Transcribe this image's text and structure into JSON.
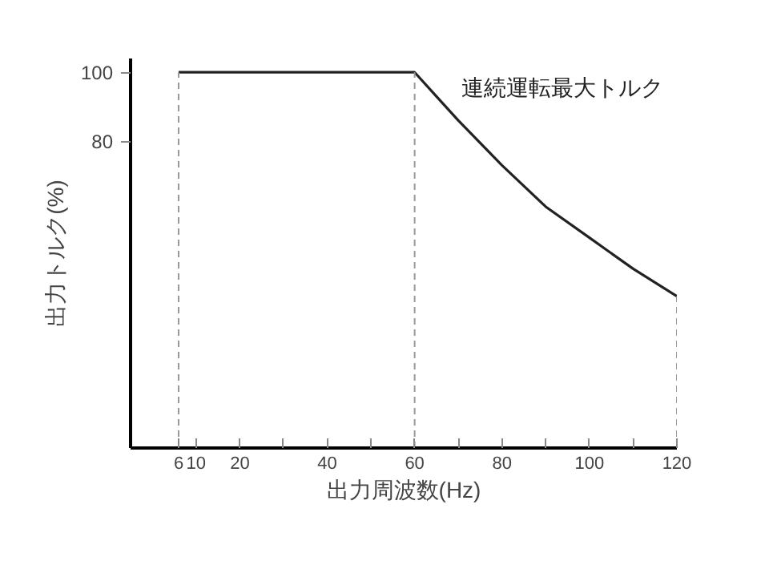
{
  "chart_data": {
    "type": "line",
    "xlabel": "出力周波数(Hz)",
    "ylabel": "出力トルク(%)",
    "x": [
      6,
      60,
      65,
      70,
      80,
      90,
      100,
      110,
      120
    ],
    "series": [
      {
        "name": "連続運転最大トルク",
        "color": "#222222",
        "values": [
          100,
          100,
          93,
          86,
          73,
          61,
          52,
          43,
          35
        ]
      }
    ],
    "xlim": [
      -5,
      120
    ],
    "ylim": [
      -9,
      104
    ],
    "xticks": [
      6,
      {
        "value": 10,
        "label": "10"
      },
      20,
      {
        "value": 30,
        "label": null
      },
      40,
      {
        "value": 50,
        "label": null
      },
      60,
      {
        "value": 70,
        "label": null
      },
      80,
      {
        "value": 90,
        "label": null
      },
      100,
      {
        "value": 110,
        "label": null
      },
      120
    ],
    "yticks": [
      80,
      100
    ],
    "ref_lines": [
      {
        "axis": "x",
        "value": 6,
        "color": "#999999",
        "line_style": "dashed"
      },
      {
        "axis": "x",
        "value": 60,
        "color": "#999999",
        "line_style": "dashed"
      },
      {
        "axis": "x",
        "value": 120,
        "color": "#999999",
        "line_style": "dashed"
      }
    ],
    "grid": false,
    "marker": "none",
    "line_style": "solid"
  }
}
